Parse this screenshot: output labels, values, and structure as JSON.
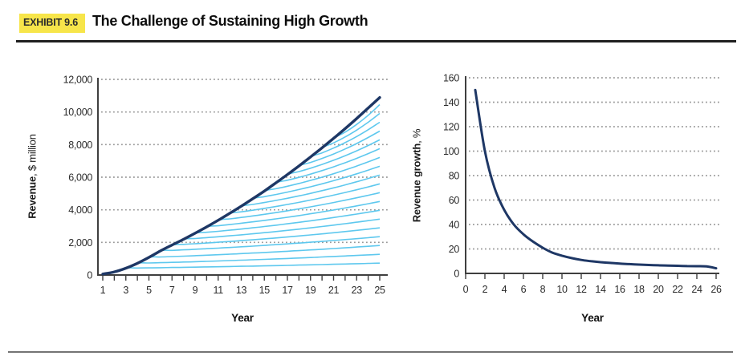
{
  "exhibit": {
    "label": "EXHIBIT 9.6",
    "title": "The Challenge of Sustaining High Growth"
  },
  "colors": {
    "navy": "#1e3765",
    "light_blue": "#5ec8ee",
    "grid": "#999999",
    "axis": "#3f3f3f",
    "text": "#2b2b2b",
    "highlight": "#f7e54a",
    "top_rule": "#1f1f1f",
    "bottom_rule": "#747474"
  },
  "chart_data": [
    {
      "type": "line",
      "title": "",
      "xlabel": "Year",
      "ylabel": "Revenue, $ million",
      "ylabel_bold": "Revenue",
      "ylabel_rest": ", $ million",
      "xlim": [
        1,
        25
      ],
      "ylim": [
        0,
        12000
      ],
      "grid": "dotted-horizontal",
      "legend": "none",
      "y_ticks": [
        0,
        2000,
        4000,
        6000,
        8000,
        10000,
        12000
      ],
      "x_tick_years": [
        1,
        2,
        3,
        4,
        5,
        6,
        7,
        8,
        9,
        10,
        11,
        12,
        13,
        14,
        15,
        16,
        17,
        18,
        19,
        20,
        21,
        22,
        23,
        24,
        25
      ],
      "x_label_years": [
        1,
        3,
        5,
        7,
        9,
        11,
        13,
        15,
        17,
        19,
        21,
        23,
        25
      ],
      "years": [
        1,
        2,
        3,
        4,
        5,
        6,
        7,
        8,
        9,
        10,
        11,
        12,
        13,
        14,
        15,
        16,
        17,
        18,
        19,
        20,
        21,
        22,
        23,
        24,
        25
      ],
      "main_series_values": [
        60,
        190,
        420,
        720,
        1080,
        1480,
        1840,
        2190,
        2560,
        2950,
        3360,
        3780,
        4220,
        4680,
        5150,
        5650,
        6160,
        6690,
        7240,
        7800,
        8380,
        8980,
        9600,
        10240,
        10890
      ],
      "fan_lines": [
        {
          "branch_year": 21,
          "end_value": 10450
        },
        {
          "branch_year": 20,
          "end_value": 9910
        },
        {
          "branch_year": 19,
          "end_value": 9370
        },
        {
          "branch_year": 18,
          "end_value": 8830
        },
        {
          "branch_year": 17,
          "end_value": 8290
        },
        {
          "branch_year": 16,
          "end_value": 7750
        },
        {
          "branch_year": 15,
          "end_value": 7210
        },
        {
          "branch_year": 14,
          "end_value": 6670
        },
        {
          "branch_year": 13,
          "end_value": 6130
        },
        {
          "branch_year": 12,
          "end_value": 5590
        },
        {
          "branch_year": 11,
          "end_value": 5050
        },
        {
          "branch_year": 10,
          "end_value": 4510
        },
        {
          "branch_year": 9,
          "end_value": 3970
        },
        {
          "branch_year": 8,
          "end_value": 3430
        },
        {
          "branch_year": 7,
          "end_value": 2890
        },
        {
          "branch_year": 6,
          "end_value": 2350
        },
        {
          "branch_year": 5,
          "end_value": 1810
        },
        {
          "branch_year": 4,
          "end_value": 1270
        },
        {
          "branch_year": 3,
          "end_value": 730
        }
      ]
    },
    {
      "type": "line",
      "title": "",
      "xlabel": "Year",
      "ylabel": "Revenue growth, %",
      "ylabel_bold": "Revenue growth",
      "ylabel_rest": ", %",
      "xlim": [
        0,
        26
      ],
      "ylim": [
        0,
        160
      ],
      "grid": "dotted-horizontal",
      "legend": "none",
      "y_ticks": [
        0,
        20,
        40,
        60,
        80,
        100,
        120,
        140,
        160
      ],
      "x_ticks": [
        0,
        2,
        4,
        6,
        8,
        10,
        12,
        14,
        16,
        18,
        20,
        22,
        24,
        26
      ],
      "years": [
        1,
        2,
        3,
        4,
        5,
        6,
        7,
        8,
        9,
        10,
        11,
        12,
        13,
        14,
        15,
        16,
        17,
        18,
        19,
        20,
        21,
        22,
        23,
        24,
        25,
        26
      ],
      "values": [
        150,
        100,
        70,
        52,
        40,
        32,
        26,
        21,
        17,
        14.5,
        12.5,
        11,
        10,
        9.2,
        8.6,
        8,
        7.6,
        7.2,
        6.9,
        6.6,
        6.4,
        6.2,
        6,
        5.9,
        5.7,
        4.2
      ]
    }
  ]
}
